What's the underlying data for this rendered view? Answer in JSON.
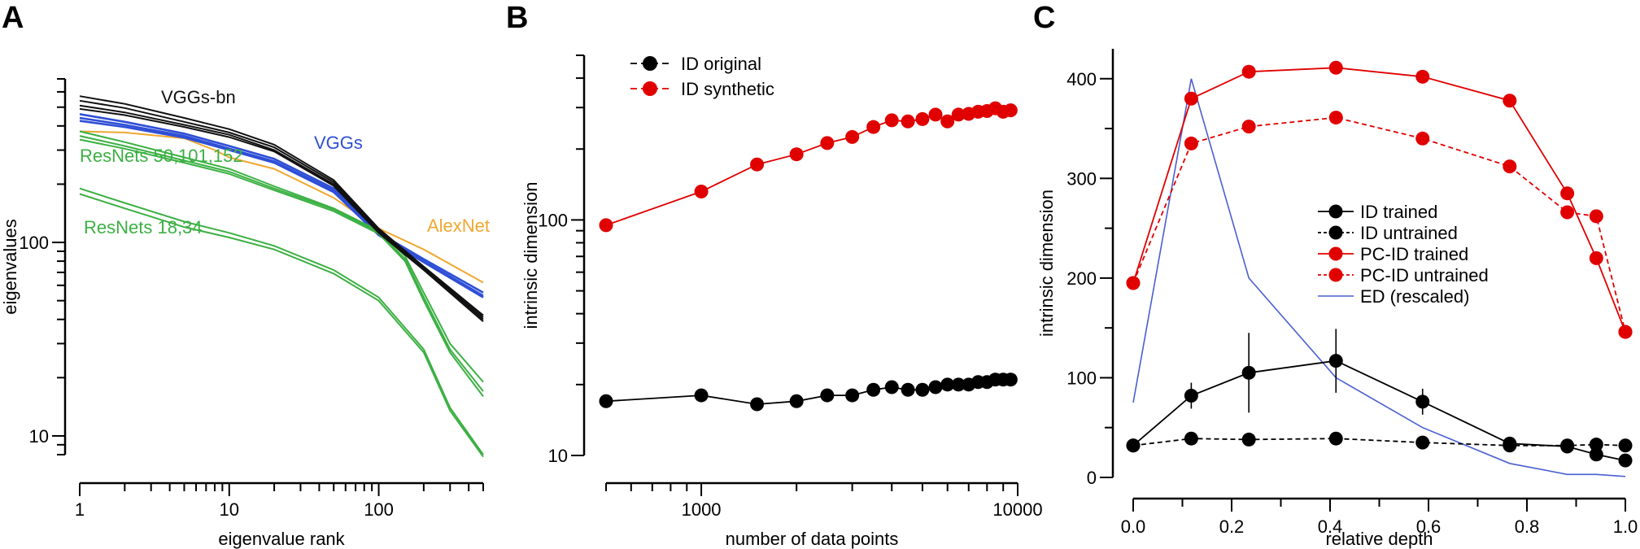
{
  "chart_data": [
    {
      "panel_label": "A",
      "type": "line",
      "xscale": "log",
      "yscale": "log",
      "xlim": [
        1,
        500
      ],
      "ylim": [
        8,
        700
      ],
      "xlabel": "eigenvalue rank",
      "ylabel": "eigenvalues",
      "x_ticks": [
        1,
        10,
        100
      ],
      "x_tick_labels": [
        "1",
        "10",
        "100"
      ],
      "y_ticks": [
        10,
        100
      ],
      "y_tick_labels": [
        "10",
        "100"
      ],
      "colors": {
        "VGGs-bn": "#111111",
        "VGGs": "#2f4fd6",
        "ResNets": "#3cb043",
        "AlexNet": "#f0a830"
      },
      "group_labels": [
        {
          "text": "VGGs-bn",
          "group": "VGGs-bn"
        },
        {
          "text": "VGGs",
          "group": "VGGs"
        },
        {
          "text": "ResNets 50,101,152",
          "group": "ResNets"
        },
        {
          "text": "ResNets 18,34",
          "group": "ResNets"
        },
        {
          "text": "AlexNet",
          "group": "AlexNet"
        }
      ],
      "series": [
        {
          "group": "VGGs-bn",
          "x": [
            1,
            2,
            5,
            10,
            20,
            50,
            100,
            200,
            500
          ],
          "y": [
            570,
            520,
            440,
            385,
            320,
            210,
            118,
            75,
            42
          ]
        },
        {
          "group": "VGGs-bn",
          "x": [
            1,
            2,
            5,
            10,
            20,
            50,
            100,
            200,
            500
          ],
          "y": [
            540,
            495,
            420,
            370,
            310,
            205,
            116,
            74,
            41
          ]
        },
        {
          "group": "VGGs-bn",
          "x": [
            1,
            2,
            5,
            10,
            20,
            50,
            100,
            200,
            500
          ],
          "y": [
            510,
            470,
            405,
            360,
            300,
            200,
            114,
            73,
            40
          ]
        },
        {
          "group": "VGGs-bn",
          "x": [
            1,
            2,
            5,
            10,
            20,
            50,
            100,
            200,
            500
          ],
          "y": [
            490,
            455,
            395,
            350,
            295,
            196,
            112,
            72,
            39
          ]
        },
        {
          "group": "VGGs",
          "x": [
            1,
            2,
            5,
            10,
            20,
            50,
            100,
            200,
            500
          ],
          "y": [
            460,
            420,
            365,
            315,
            270,
            190,
            112,
            82,
            55
          ]
        },
        {
          "group": "VGGs",
          "x": [
            1,
            2,
            5,
            10,
            20,
            50,
            100,
            200,
            500
          ],
          "y": [
            440,
            405,
            355,
            305,
            262,
            185,
            110,
            80,
            53
          ]
        },
        {
          "group": "VGGs",
          "x": [
            1,
            2,
            5,
            10,
            20,
            50,
            100,
            200,
            500
          ],
          "y": [
            425,
            395,
            348,
            300,
            258,
            182,
            109,
            79,
            52
          ]
        },
        {
          "group": "AlexNet",
          "x": [
            1,
            2,
            5,
            8,
            10,
            20,
            50,
            100,
            200,
            500
          ],
          "y": [
            375,
            370,
            345,
            300,
            275,
            240,
            170,
            118,
            92,
            62
          ]
        },
        {
          "group": "ResNets",
          "x": [
            1,
            2,
            5,
            10,
            20,
            50,
            100,
            150,
            200,
            300,
            500
          ],
          "y": [
            375,
            330,
            275,
            240,
            195,
            150,
            115,
            85,
            55,
            30,
            19
          ]
        },
        {
          "group": "ResNets",
          "x": [
            1,
            2,
            5,
            10,
            20,
            50,
            100,
            150,
            200,
            300,
            500
          ],
          "y": [
            355,
            315,
            265,
            232,
            190,
            148,
            113,
            82,
            52,
            28,
            17
          ]
        },
        {
          "group": "ResNets",
          "x": [
            1,
            2,
            5,
            10,
            20,
            50,
            100,
            150,
            200,
            300,
            500
          ],
          "y": [
            340,
            305,
            258,
            226,
            186,
            145,
            111,
            80,
            50,
            27,
            16
          ]
        },
        {
          "group": "ResNets",
          "x": [
            1,
            2,
            5,
            10,
            20,
            50,
            100,
            200,
            300,
            500
          ],
          "y": [
            190,
            160,
            128,
            112,
            96,
            72,
            52,
            28,
            14,
            8
          ]
        },
        {
          "group": "ResNets",
          "x": [
            1,
            2,
            5,
            10,
            20,
            50,
            100,
            200,
            300,
            500
          ],
          "y": [
            178,
            150,
            120,
            106,
            92,
            69,
            50,
            27,
            13.5,
            7.8
          ]
        }
      ]
    },
    {
      "panel_label": "B",
      "type": "line",
      "xscale": "log",
      "yscale": "log",
      "xlim": [
        500,
        10000
      ],
      "ylim": [
        10,
        500
      ],
      "xlabel": "number of data points",
      "ylabel": "intrinsic dimension",
      "x_ticks": [
        1000,
        10000
      ],
      "x_tick_labels": [
        "1000",
        "10000"
      ],
      "y_ticks": [
        10,
        100
      ],
      "y_tick_labels": [
        "10",
        "100"
      ],
      "series": [
        {
          "name": "ID original",
          "color": "#000000",
          "marker": "circle",
          "x": [
            500,
            1000,
            1500,
            2000,
            2500,
            3000,
            3500,
            4000,
            4500,
            5000,
            5500,
            6000,
            6500,
            7000,
            7500,
            8000,
            8500,
            9000,
            9500
          ],
          "y": [
            17,
            18,
            16.5,
            17,
            18,
            18,
            19,
            19.5,
            19,
            19,
            19.5,
            20,
            20,
            20,
            20.5,
            20.5,
            21,
            21,
            21
          ]
        },
        {
          "name": "ID synthetic",
          "color": "#e00000",
          "marker": "circle",
          "x": [
            500,
            1000,
            1500,
            2000,
            2500,
            3000,
            3500,
            4000,
            4500,
            5000,
            5500,
            6000,
            6500,
            7000,
            7500,
            8000,
            8500,
            9000,
            9500
          ],
          "y": [
            95,
            132,
            172,
            190,
            212,
            225,
            248,
            265,
            262,
            268,
            280,
            262,
            280,
            282,
            288,
            290,
            298,
            288,
            292
          ]
        }
      ]
    },
    {
      "panel_label": "C",
      "type": "line",
      "xlim": [
        0,
        1
      ],
      "ylim": [
        0,
        430
      ],
      "xlabel": "relative depth",
      "ylabel": "intrinsic dimension",
      "x_ticks": [
        0,
        0.2,
        0.4,
        0.6,
        0.8,
        1.0
      ],
      "x_tick_labels": [
        "0.0",
        "0.2",
        "0.4",
        "0.6",
        "0.8",
        "1.0"
      ],
      "y_ticks": [
        0,
        100,
        200,
        300,
        400
      ],
      "y_tick_labels": [
        "0",
        "100",
        "200",
        "300",
        "400"
      ],
      "legend_position": "right",
      "series": [
        {
          "name": "ID trained",
          "color": "#000000",
          "style": "solid",
          "marker": "circle",
          "x": [
            0.0,
            0.118,
            0.235,
            0.412,
            0.588,
            0.765,
            0.882,
            0.941,
            1.0
          ],
          "y": [
            32,
            82,
            105,
            117,
            76,
            34,
            31,
            23,
            17
          ],
          "error": [
            0,
            13,
            40,
            32,
            13,
            5,
            3,
            3,
            3
          ]
        },
        {
          "name": "ID untrained",
          "color": "#000000",
          "style": "dashed",
          "marker": "circle",
          "x": [
            0.0,
            0.118,
            0.235,
            0.412,
            0.588,
            0.765,
            0.882,
            0.941,
            1.0
          ],
          "y": [
            32,
            39,
            38,
            39,
            35,
            32,
            32,
            33,
            32
          ]
        },
        {
          "name": "PC-ID trained",
          "color": "#e00000",
          "style": "solid",
          "marker": "circle",
          "x": [
            0.0,
            0.118,
            0.235,
            0.412,
            0.588,
            0.765,
            0.882,
            0.941,
            1.0
          ],
          "y": [
            195,
            380,
            407,
            411,
            402,
            378,
            285,
            220,
            146
          ]
        },
        {
          "name": "PC-ID untrained",
          "color": "#e00000",
          "style": "dashed",
          "marker": "circle",
          "x": [
            0.0,
            0.118,
            0.235,
            0.412,
            0.588,
            0.765,
            0.882,
            0.941,
            1.0
          ],
          "y": [
            195,
            335,
            352,
            361,
            340,
            312,
            266,
            262,
            146
          ]
        },
        {
          "name": "ED (rescaled)",
          "color": "#4a5fd0",
          "style": "solid",
          "marker": "none",
          "x": [
            0.0,
            0.118,
            0.235,
            0.412,
            0.588,
            0.765,
            0.882,
            0.941,
            1.0
          ],
          "y": [
            75,
            400,
            200,
            100,
            50,
            14,
            3,
            3,
            1
          ]
        }
      ]
    }
  ]
}
